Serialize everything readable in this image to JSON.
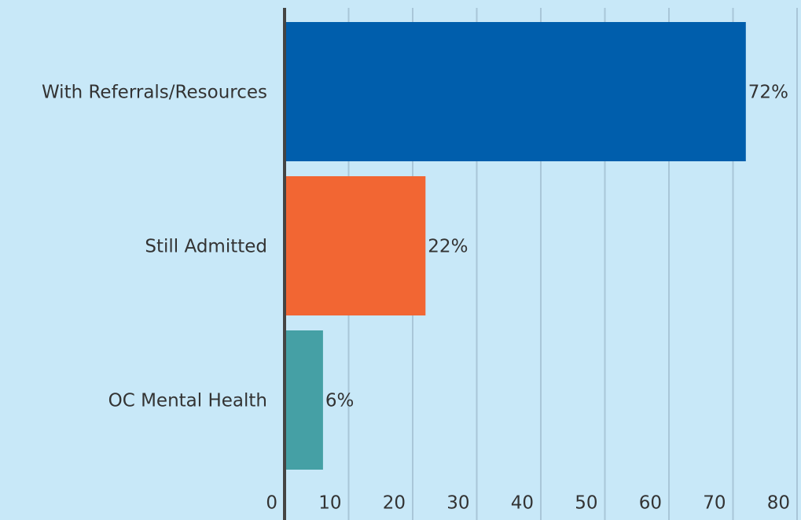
{
  "chart_data": {
    "type": "hbar",
    "categories": [
      "With Referrals/Resources",
      "Still Admitted",
      "OC Mental Health"
    ],
    "values": [
      72,
      22,
      6
    ],
    "value_labels": [
      "72%",
      "22%",
      "6%"
    ],
    "colors": [
      "#005eac",
      "#f26633",
      "#45a0a5"
    ],
    "xlim": [
      0,
      80
    ],
    "xticks": [
      0,
      10,
      20,
      30,
      40,
      50,
      60,
      70,
      80
    ],
    "grid": true
  }
}
